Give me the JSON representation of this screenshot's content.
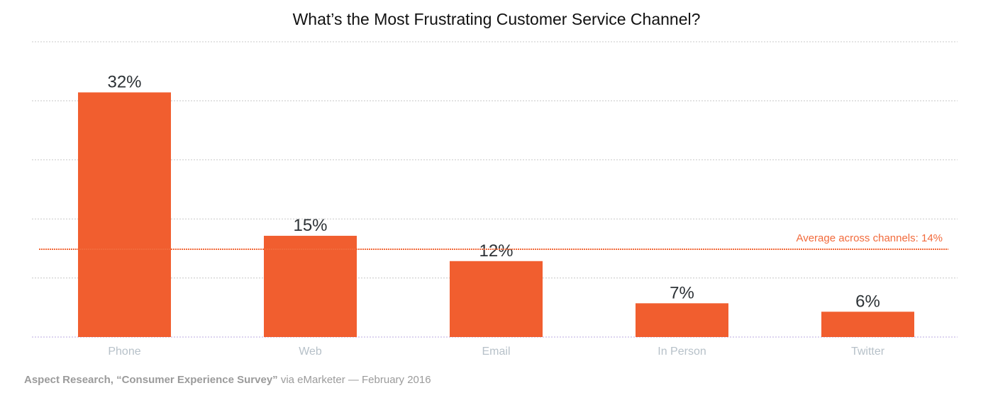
{
  "chart_data": {
    "type": "bar",
    "title": "What’s the Most Frustrating Customer Service Channel?",
    "categories": [
      "Phone",
      "Web",
      "Email",
      "In Person",
      "Twitter"
    ],
    "values": [
      32,
      15,
      12,
      7,
      6
    ],
    "data_labels": [
      "32%",
      "15%",
      "12%",
      "7%",
      "6%"
    ],
    "xlabel": "",
    "ylabel": "",
    "ylim": [
      3,
      38
    ],
    "gridlines": [
      10,
      17,
      24,
      31,
      38
    ],
    "grid": true,
    "legend": "none",
    "reference_line": {
      "value": 14,
      "label": "Average across channels: 14%"
    },
    "colors": {
      "bar": "#f15e2f",
      "average": "#f26a3b",
      "grid": "#c8c8c8",
      "baseline": "#b9a8e0",
      "category_label": "#b7c1c9",
      "value_label": "#2d3236"
    }
  },
  "source": {
    "bold": "Aspect Research, “Consumer Experience Survey”",
    "rest": " via eMarketer — February 2016"
  }
}
